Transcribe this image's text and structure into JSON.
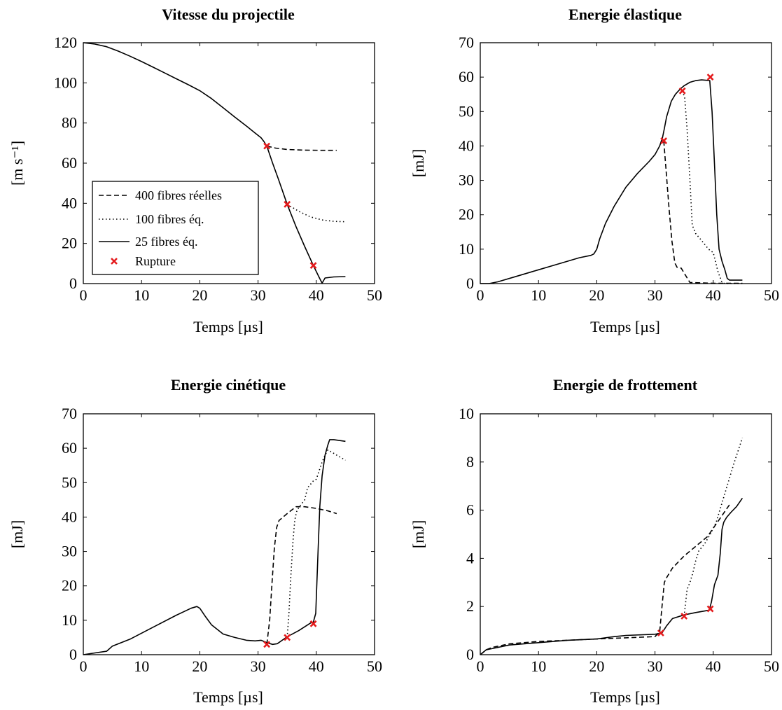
{
  "legend": {
    "entries": [
      {
        "label": "400 fibres réelles",
        "style": "dashed"
      },
      {
        "label": "100 fibres éq.",
        "style": "dotted"
      },
      {
        "label": "25 fibres éq.",
        "style": "solid"
      },
      {
        "label": "Rupture",
        "style": "marker"
      }
    ]
  },
  "colors": {
    "line": "#000000",
    "rupture_marker": "#e41a1c"
  },
  "chart_data": [
    {
      "type": "line",
      "title": "Vitesse du projectile",
      "xlabel": "Temps [µs]",
      "ylabel": "[m s⁻¹]",
      "xlim": [
        0,
        50
      ],
      "ylim": [
        0,
        120
      ],
      "xticks": [
        0,
        10,
        20,
        30,
        40,
        50
      ],
      "yticks": [
        0,
        20,
        40,
        60,
        80,
        100,
        120
      ],
      "grid": false,
      "legend_position": "bottom-left",
      "series": [
        {
          "name": "400 fibres réelles",
          "style": "dashed",
          "x": [
            31.5,
            33,
            35,
            38,
            41,
            43.5
          ],
          "y": [
            68.5,
            67.5,
            66.8,
            66.5,
            66.4,
            66.4
          ]
        },
        {
          "name": "100 fibres éq.",
          "style": "dotted",
          "x": [
            35,
            37,
            39,
            41,
            43,
            45
          ],
          "y": [
            39.5,
            36,
            33.2,
            31.7,
            31,
            30.8
          ]
        },
        {
          "name": "25 fibres éq.",
          "style": "solid",
          "x": [
            0,
            2,
            4,
            6,
            8,
            10,
            12,
            14,
            16,
            18,
            20,
            22,
            24,
            26,
            28,
            29.5,
            30.5,
            31,
            31.5,
            32.5,
            33.5,
            35,
            36.5,
            38,
            39.5,
            40.5,
            41,
            41.5,
            43,
            45
          ],
          "y": [
            120,
            119.3,
            118,
            115.8,
            113.3,
            110.6,
            107.8,
            104.9,
            102,
            99.1,
            96.1,
            92.2,
            87.6,
            83,
            78.5,
            75,
            72.7,
            70.8,
            68.5,
            60,
            52,
            39.5,
            28.5,
            18.5,
            9,
            3,
            0.2,
            2.8,
            3.3,
            3.5
          ]
        }
      ],
      "rupture_points": {
        "x": [
          31.5,
          35,
          39.5
        ],
        "y": [
          68.5,
          39.5,
          9
        ]
      }
    },
    {
      "type": "line",
      "title": "Energie élastique",
      "xlabel": "Temps [µs]",
      "ylabel": "[mJ]",
      "xlim": [
        0,
        50
      ],
      "ylim": [
        0,
        70
      ],
      "xticks": [
        0,
        10,
        20,
        30,
        40,
        50
      ],
      "yticks": [
        0,
        10,
        20,
        30,
        40,
        50,
        60,
        70
      ],
      "grid": false,
      "series": [
        {
          "name": "400 fibres réelles",
          "style": "dashed",
          "x": [
            31.5,
            31.9,
            32.4,
            32.9,
            33.4,
            33.8,
            34.5,
            35.2,
            36,
            40,
            45
          ],
          "y": [
            41.5,
            33,
            22,
            12.5,
            6,
            4.7,
            4.5,
            2.5,
            0.3,
            0.1,
            0.1
          ]
        },
        {
          "name": "100 fibres éq.",
          "style": "dotted",
          "x": [
            34.7,
            35.1,
            35.5,
            36,
            36.4,
            37,
            38,
            39.2,
            40,
            40.8,
            41.5,
            42,
            45
          ],
          "y": [
            56,
            54,
            45,
            30,
            17,
            14.5,
            12.5,
            10,
            9,
            3.5,
            0.3,
            0,
            0
          ]
        },
        {
          "name": "25 fibres éq.",
          "style": "solid",
          "x": [
            0,
            1.5,
            3,
            6,
            10,
            14,
            17,
            19,
            19.5,
            20,
            20.5,
            21.5,
            23,
            25,
            27,
            29,
            30,
            30.8,
            31.3,
            31.6,
            32,
            32.8,
            33.5,
            34.3,
            35,
            36,
            37,
            38,
            39.4,
            39.8,
            40.2,
            40.6,
            41,
            41.5,
            42,
            42.4,
            42.8,
            43.3,
            45
          ],
          "y": [
            0,
            0,
            0.5,
            2,
            4,
            6,
            7.5,
            8.2,
            8.6,
            10,
            13,
            17.5,
            22.5,
            28,
            32,
            35.5,
            37.5,
            40,
            42.5,
            45,
            48.5,
            53,
            55,
            56.5,
            57.5,
            58.5,
            59,
            59.2,
            59,
            50,
            35,
            20,
            10,
            6.5,
            4,
            1.5,
            1,
            1,
            1
          ]
        }
      ],
      "rupture_points": {
        "x": [
          31.5,
          34.7,
          39.5
        ],
        "y": [
          41.5,
          56,
          60
        ]
      }
    },
    {
      "type": "line",
      "title": "Energie cinétique",
      "xlabel": "Temps [µs]",
      "ylabel": "[mJ]",
      "xlim": [
        0,
        50
      ],
      "ylim": [
        0,
        70
      ],
      "xticks": [
        0,
        10,
        20,
        30,
        40,
        50
      ],
      "yticks": [
        0,
        10,
        20,
        30,
        40,
        50,
        60,
        70
      ],
      "grid": false,
      "series": [
        {
          "name": "400 fibres réelles",
          "style": "dashed",
          "x": [
            31.5,
            32,
            32.4,
            32.8,
            33.2,
            33.6,
            35,
            36.5,
            38,
            40,
            42,
            43.5
          ],
          "y": [
            3,
            10,
            21,
            31,
            37,
            39,
            41,
            43,
            43,
            42.5,
            41.8,
            41
          ]
        },
        {
          "name": "100 fibres éq.",
          "style": "dotted",
          "x": [
            35,
            35.3,
            35.6,
            36,
            36.3,
            36.6,
            37,
            38,
            38.5,
            39.5,
            40,
            41,
            41.5,
            42,
            43,
            44,
            45
          ],
          "y": [
            5,
            12,
            22,
            33,
            39,
            41.5,
            42.8,
            45,
            48.5,
            50.5,
            51,
            56,
            58,
            59.5,
            58.5,
            57.5,
            56.5
          ]
        },
        {
          "name": "25 fibres éq.",
          "style": "solid",
          "x": [
            0,
            2,
            4,
            5,
            8,
            12,
            16,
            18.5,
            19.5,
            20,
            21,
            22,
            24,
            26,
            28,
            29.5,
            30.5,
            31.5,
            32.5,
            33.3,
            35,
            37,
            39,
            39.5,
            39.9,
            40.3,
            40.6,
            41,
            41.5,
            42,
            42.3,
            43,
            45
          ],
          "y": [
            0,
            0.5,
            1,
            2.5,
            4.5,
            8,
            11.5,
            13.5,
            14,
            13.5,
            11,
            8.7,
            6,
            5,
            4.2,
            4,
            4.2,
            3.5,
            3,
            3.2,
            5.2,
            7,
            9.2,
            9.5,
            12,
            30,
            43,
            52,
            58,
            61,
            62.5,
            62.5,
            62
          ]
        }
      ],
      "rupture_points": {
        "x": [
          31.5,
          35,
          39.5
        ],
        "y": [
          3,
          5,
          9
        ]
      }
    },
    {
      "type": "line",
      "title": "Energie de frottement",
      "xlabel": "Temps [µs]",
      "ylabel": "[mJ]",
      "xlim": [
        0,
        50
      ],
      "ylim": [
        0,
        10
      ],
      "xticks": [
        0,
        10,
        20,
        30,
        40,
        50
      ],
      "yticks": [
        0,
        2,
        4,
        6,
        8,
        10
      ],
      "grid": false,
      "series": [
        {
          "name": "400 fibres réelles",
          "style": "dashed",
          "x": [
            0,
            0.5,
            1,
            2,
            5,
            10,
            15,
            20,
            25,
            30,
            30.8,
            31.2,
            31.6,
            32,
            33,
            35,
            37,
            39,
            41,
            43
          ],
          "y": [
            0,
            0.1,
            0.2,
            0.3,
            0.45,
            0.55,
            0.6,
            0.65,
            0.7,
            0.75,
            0.95,
            2,
            3,
            3.2,
            3.6,
            4.1,
            4.5,
            4.9,
            5.6,
            6.3
          ]
        },
        {
          "name": "100 fibres éq.",
          "style": "dotted",
          "x": [
            35,
            35.5,
            36,
            36.5,
            37,
            37.5,
            38.5,
            39.5,
            40.5,
            41.5,
            42.5,
            43.5,
            45
          ],
          "y": [
            1.6,
            2.7,
            3,
            3.4,
            3.9,
            4.3,
            4.6,
            5,
            5.5,
            6.3,
            7.1,
            7.9,
            9
          ]
        },
        {
          "name": "25 fibres éq.",
          "style": "solid",
          "x": [
            0,
            0.5,
            1,
            2,
            5,
            10,
            15,
            20,
            23,
            25,
            30,
            31.2,
            32,
            33,
            35,
            37,
            39.3,
            39.7,
            40.2,
            40.8,
            41.2,
            41.5,
            41.8,
            42.3,
            43,
            44,
            45
          ],
          "y": [
            0,
            0.1,
            0.2,
            0.25,
            0.4,
            0.5,
            0.6,
            0.65,
            0.75,
            0.8,
            0.85,
            0.9,
            1.2,
            1.5,
            1.65,
            1.75,
            1.85,
            2.2,
            2.9,
            3.3,
            4.2,
            5.2,
            5.5,
            5.7,
            5.9,
            6.15,
            6.5
          ]
        }
      ],
      "rupture_points": {
        "x": [
          31,
          35,
          39.5
        ],
        "y": [
          0.9,
          1.6,
          1.9
        ]
      }
    }
  ]
}
